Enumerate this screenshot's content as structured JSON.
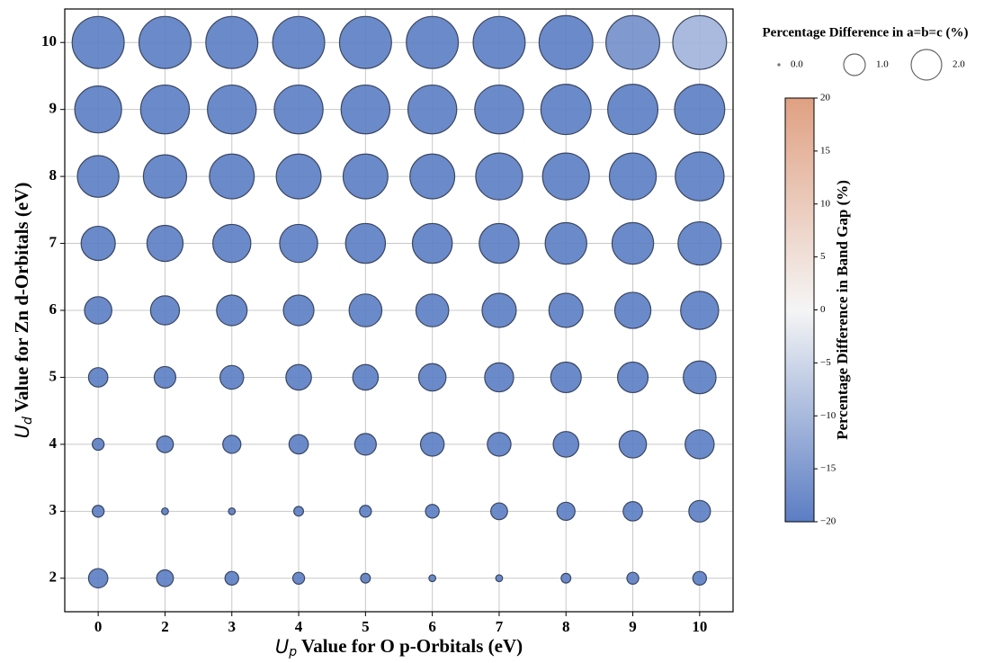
{
  "chart_data": {
    "type": "bubble",
    "categories": [
      "0",
      "2",
      "3",
      "4",
      "5",
      "6",
      "7",
      "8",
      "9",
      "10"
    ],
    "x_label": {
      "symbol": "U",
      "subscript": "p",
      "text": " Value for O p-Orbitals (eV)"
    },
    "y_label": {
      "symbol": "U",
      "subscript": "d",
      "text": " Value for Zn d-Orbitals (eV)"
    },
    "ylim": [
      1.5,
      10.5
    ],
    "yticks": [
      2,
      3,
      4,
      5,
      6,
      7,
      8,
      9,
      10
    ],
    "grid": true,
    "rows": [
      {
        "y": 2,
        "sizes": [
          0.8,
          0.6,
          0.4,
          0.3,
          0.2,
          0.1,
          0.1,
          0.2,
          0.3,
          0.4
        ],
        "colors": [
          -20,
          -20,
          -20,
          -20,
          -20,
          -20,
          -20,
          -20,
          -20,
          -20
        ]
      },
      {
        "y": 3,
        "sizes": [
          0.3,
          0.1,
          0.1,
          0.2,
          0.3,
          0.4,
          0.6,
          0.7,
          0.8,
          1.0
        ],
        "colors": [
          -20,
          -20,
          -20,
          -20,
          -20,
          -20,
          -20,
          -20,
          -20,
          -20
        ]
      },
      {
        "y": 4,
        "sizes": [
          0.3,
          0.6,
          0.7,
          0.8,
          1.0,
          1.2,
          1.2,
          1.4,
          1.6,
          1.8
        ],
        "colors": [
          -20,
          -20,
          -20,
          -20,
          -20,
          -20,
          -20,
          -20,
          -20,
          -20
        ]
      },
      {
        "y": 5,
        "sizes": [
          0.8,
          1.0,
          1.2,
          1.4,
          1.4,
          1.6,
          1.8,
          2.0,
          2.0,
          2.3
        ],
        "colors": [
          -20,
          -20,
          -20,
          -20,
          -20,
          -20,
          -20,
          -20,
          -20,
          -20
        ]
      },
      {
        "y": 6,
        "sizes": [
          1.6,
          1.8,
          2.0,
          2.0,
          2.3,
          2.3,
          2.5,
          2.5,
          2.8,
          3.1
        ],
        "colors": [
          -20,
          -20,
          -20,
          -20,
          -20,
          -20,
          -20,
          -20,
          -20,
          -20
        ]
      },
      {
        "y": 7,
        "sizes": [
          2.5,
          2.8,
          3.1,
          3.1,
          3.4,
          3.4,
          3.4,
          3.7,
          3.7,
          4.0
        ],
        "colors": [
          -20,
          -20,
          -20,
          -20,
          -20,
          -20,
          -20,
          -20,
          -20,
          -20
        ]
      },
      {
        "y": 8,
        "sizes": [
          3.7,
          4.0,
          4.3,
          4.3,
          4.3,
          4.3,
          4.7,
          4.7,
          4.7,
          5.1
        ],
        "colors": [
          -20,
          -20,
          -20,
          -20,
          -20,
          -20,
          -20,
          -20,
          -20,
          -20
        ]
      },
      {
        "y": 9,
        "sizes": [
          4.7,
          5.1,
          5.1,
          5.1,
          5.1,
          5.1,
          5.1,
          5.4,
          5.4,
          5.4
        ],
        "colors": [
          -20,
          -20,
          -20,
          -20,
          -20,
          -20,
          -20,
          -20,
          -20,
          -20
        ]
      },
      {
        "y": 10,
        "sizes": [
          5.8,
          5.8,
          5.8,
          5.8,
          5.8,
          5.8,
          5.8,
          6.2,
          6.2,
          6.2
        ],
        "colors": [
          -20,
          -20,
          -20,
          -20,
          -20,
          -20,
          -20,
          -20,
          -17,
          -11
        ]
      }
    ],
    "size_legend": {
      "title": "Percentage Difference in a=b=c (%)",
      "entries": [
        {
          "value": 0,
          "label": "0.0"
        },
        {
          "value": 1,
          "label": "1.0"
        },
        {
          "value": 2,
          "label": "2.0"
        }
      ]
    },
    "colorbar": {
      "label": "Percentage Difference in Band Gap (%)",
      "lim": [
        -20,
        20
      ],
      "colormap": [
        "#5b7dc4",
        "#f5f5f5",
        "#e0a082"
      ],
      "ticks": [
        {
          "value": -20,
          "label": "−20"
        },
        {
          "value": -15,
          "label": "−15"
        },
        {
          "value": -10,
          "label": "−10"
        },
        {
          "value": -5,
          "label": "−5"
        },
        0,
        5,
        10,
        15,
        20
      ]
    }
  }
}
